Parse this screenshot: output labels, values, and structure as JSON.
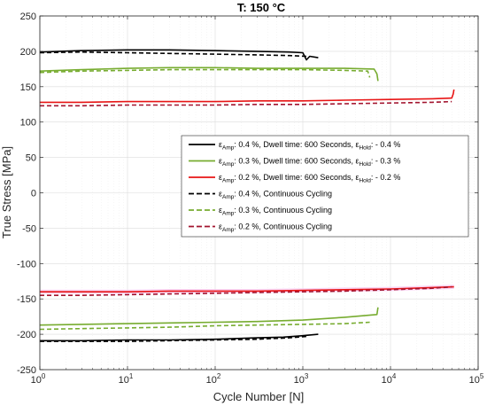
{
  "chart_data": {
    "type": "line",
    "title": "T: 150 °C",
    "xlabel": "Cycle Number [N]",
    "ylabel": "True Stress [MPa]",
    "x_scale": "log",
    "xlim": [
      1,
      100000
    ],
    "ylim": [
      -250,
      250
    ],
    "grid": true,
    "legend_position": "center-right",
    "x_ticks": [
      {
        "base": "10",
        "exp": "0",
        "value": 1
      },
      {
        "base": "10",
        "exp": "1",
        "value": 10
      },
      {
        "base": "10",
        "exp": "2",
        "value": 100
      },
      {
        "base": "10",
        "exp": "3",
        "value": 1000
      },
      {
        "base": "10",
        "exp": "4",
        "value": 10000
      },
      {
        "base": "10",
        "exp": "5",
        "value": 100000
      }
    ],
    "y_ticks": [
      "-250",
      "-200",
      "-150",
      "-100",
      "-50",
      "0",
      "50",
      "100",
      "150",
      "200",
      "250"
    ],
    "series": [
      {
        "legend": {
          "pre": "ε",
          "sub1": "Amp",
          "mid": ": 0.4 %, Dwell time: 600 Seconds, ε",
          "sub2": "Hold",
          "post": ": - 0.4 %"
        },
        "color": "#000000",
        "dash": "solid",
        "upper": [
          [
            1,
            199
          ],
          [
            3,
            201
          ],
          [
            10,
            202
          ],
          [
            30,
            202
          ],
          [
            100,
            201
          ],
          [
            300,
            200
          ],
          [
            700,
            199
          ],
          [
            1000,
            198
          ],
          [
            1100,
            188
          ],
          [
            1200,
            193
          ],
          [
            1500,
            191
          ]
        ],
        "lower": [
          [
            1,
            -209
          ],
          [
            3,
            -209
          ],
          [
            10,
            -208
          ],
          [
            30,
            -208
          ],
          [
            100,
            -207
          ],
          [
            300,
            -205
          ],
          [
            600,
            -204
          ],
          [
            1000,
            -202
          ],
          [
            1500,
            -200
          ]
        ]
      },
      {
        "legend": {
          "pre": "ε",
          "sub1": "Amp",
          "mid": ": 0.3 %, Dwell time: 600 Seconds, ε",
          "sub2": "Hold",
          "post": ": - 0.3 %"
        },
        "color": "#77ac30",
        "dash": "solid",
        "upper": [
          [
            1,
            172
          ],
          [
            3,
            174
          ],
          [
            10,
            176
          ],
          [
            30,
            177
          ],
          [
            100,
            177
          ],
          [
            300,
            176
          ],
          [
            1000,
            176
          ],
          [
            3000,
            176
          ],
          [
            6500,
            175
          ],
          [
            7000,
            168
          ],
          [
            7200,
            158
          ]
        ],
        "lower": [
          [
            1,
            -187
          ],
          [
            3,
            -186
          ],
          [
            10,
            -185
          ],
          [
            30,
            -184
          ],
          [
            100,
            -183
          ],
          [
            300,
            -182
          ],
          [
            1000,
            -180
          ],
          [
            3000,
            -176
          ],
          [
            7000,
            -172
          ],
          [
            7200,
            -162
          ]
        ]
      },
      {
        "legend": {
          "pre": "ε",
          "sub1": "Amp",
          "mid": ": 0.2 %, Dwell time: 600 Seconds, ε",
          "sub2": "Hold",
          "post": ": - 0.2 %"
        },
        "color": "#e81515",
        "dash": "solid",
        "upper": [
          [
            1,
            128
          ],
          [
            3,
            128
          ],
          [
            10,
            129
          ],
          [
            30,
            129
          ],
          [
            100,
            129
          ],
          [
            300,
            130
          ],
          [
            1000,
            130
          ],
          [
            3000,
            131
          ],
          [
            10000,
            132
          ],
          [
            30000,
            133
          ],
          [
            50000,
            134
          ],
          [
            52000,
            140
          ],
          [
            53000,
            146
          ]
        ],
        "lower": [
          [
            1,
            -140
          ],
          [
            3,
            -140
          ],
          [
            10,
            -140
          ],
          [
            30,
            -139
          ],
          [
            100,
            -139
          ],
          [
            300,
            -139
          ],
          [
            1000,
            -138
          ],
          [
            3000,
            -137
          ],
          [
            10000,
            -136
          ],
          [
            30000,
            -134
          ],
          [
            53000,
            -133
          ]
        ]
      },
      {
        "legend": {
          "pre": "ε",
          "sub1": "Amp",
          "mid": ": 0.4 %, Continuous Cycling",
          "sub2": "",
          "post": ""
        },
        "color": "#000000",
        "dash": "dashed",
        "upper": [
          [
            1,
            198
          ],
          [
            3,
            199
          ],
          [
            10,
            198
          ],
          [
            30,
            197
          ],
          [
            100,
            196
          ],
          [
            300,
            195
          ],
          [
            700,
            194
          ],
          [
            1100,
            193
          ]
        ],
        "lower": [
          [
            1,
            -210
          ],
          [
            3,
            -210
          ],
          [
            10,
            -210
          ],
          [
            30,
            -209
          ],
          [
            100,
            -208
          ],
          [
            300,
            -207
          ],
          [
            700,
            -205
          ],
          [
            1100,
            -203
          ]
        ]
      },
      {
        "legend": {
          "pre": "ε",
          "sub1": "Amp",
          "mid": ": 0.3 %, Continuous Cycling",
          "sub2": "",
          "post": ""
        },
        "color": "#77ac30",
        "dash": "dashed",
        "upper": [
          [
            1,
            170
          ],
          [
            3,
            172
          ],
          [
            10,
            173
          ],
          [
            30,
            174
          ],
          [
            100,
            174
          ],
          [
            300,
            174
          ],
          [
            1000,
            174
          ],
          [
            3000,
            173
          ],
          [
            5500,
            172
          ],
          [
            5800,
            163
          ]
        ],
        "lower": [
          [
            1,
            -193
          ],
          [
            3,
            -192
          ],
          [
            10,
            -191
          ],
          [
            30,
            -190
          ],
          [
            100,
            -188
          ],
          [
            300,
            -187
          ],
          [
            1000,
            -186
          ],
          [
            3000,
            -185
          ],
          [
            5800,
            -183
          ]
        ]
      },
      {
        "legend": {
          "pre": "ε",
          "sub1": "Amp",
          "mid": ": 0.2 %, Continuous Cycling",
          "sub2": "",
          "post": ""
        },
        "color": "#a2142f",
        "dash": "dashed",
        "upper": [
          [
            1,
            123
          ],
          [
            3,
            123
          ],
          [
            10,
            124
          ],
          [
            30,
            124
          ],
          [
            100,
            124
          ],
          [
            300,
            125
          ],
          [
            1000,
            125
          ],
          [
            3000,
            126
          ],
          [
            10000,
            127
          ],
          [
            30000,
            128
          ],
          [
            50000,
            129
          ]
        ],
        "lower": [
          [
            1,
            -145
          ],
          [
            3,
            -145
          ],
          [
            10,
            -144
          ],
          [
            30,
            -143
          ],
          [
            100,
            -142
          ],
          [
            300,
            -141
          ],
          [
            1000,
            -140
          ],
          [
            3000,
            -139
          ],
          [
            10000,
            -137
          ],
          [
            30000,
            -135
          ],
          [
            50000,
            -133
          ]
        ]
      }
    ]
  }
}
